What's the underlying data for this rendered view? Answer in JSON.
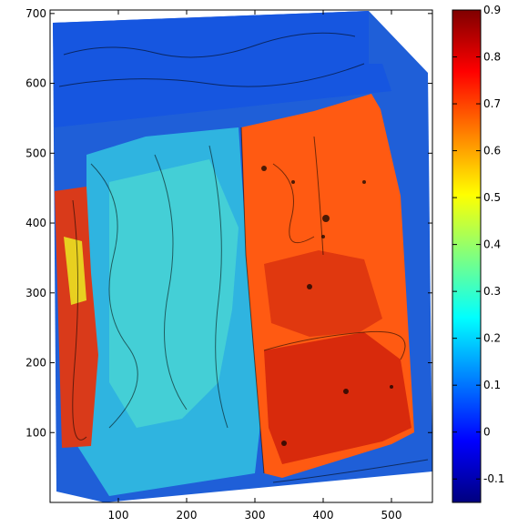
{
  "chart_data": {
    "type": "heatmap",
    "title": "",
    "xlabel": "",
    "ylabel": "",
    "xlim": [
      0,
      560
    ],
    "ylim": [
      0,
      705
    ],
    "x_ticks": [
      "100",
      "200",
      "300",
      "400",
      "500"
    ],
    "y_ticks": [
      "100",
      "200",
      "300",
      "400",
      "500",
      "600",
      "700"
    ],
    "x_tick_values": [
      100,
      200,
      300,
      400,
      500
    ],
    "y_tick_values": [
      100,
      200,
      300,
      400,
      500,
      600,
      700
    ],
    "colorbar": {
      "colormap": "jet",
      "range": [
        -0.15,
        0.9
      ],
      "ticks": [
        "-0.1",
        "0",
        "0.1",
        "0.2",
        "0.3",
        "0.4",
        "0.5",
        "0.6",
        "0.7",
        "0.8",
        "0.9"
      ],
      "tick_values": [
        -0.1,
        0,
        0.1,
        0.2,
        0.3,
        0.4,
        0.5,
        0.6,
        0.7,
        0.8,
        0.9
      ]
    },
    "regions": [
      {
        "name": "background",
        "x": [
          60,
          560
        ],
        "y": [
          10,
          700
        ],
        "value": 0.08
      },
      {
        "name": "left-red-strip",
        "x": [
          5,
          45
        ],
        "y": [
          90,
          445
        ],
        "value": 0.78
      },
      {
        "name": "center-cyan",
        "x": [
          45,
          280
        ],
        "y": [
          20,
          550
        ],
        "value": 0.22
      },
      {
        "name": "right-orange-block",
        "x": [
          275,
          525
        ],
        "y": [
          45,
          575
        ],
        "value": 0.74
      },
      {
        "name": "right-red-lower",
        "x": [
          285,
          500
        ],
        "y": [
          60,
          240
        ],
        "value": 0.82
      },
      {
        "name": "top-blue",
        "x": [
          10,
          530
        ],
        "y": [
          560,
          705
        ],
        "value": 0.07
      }
    ],
    "grid": false,
    "legend": "colorbar-right"
  }
}
